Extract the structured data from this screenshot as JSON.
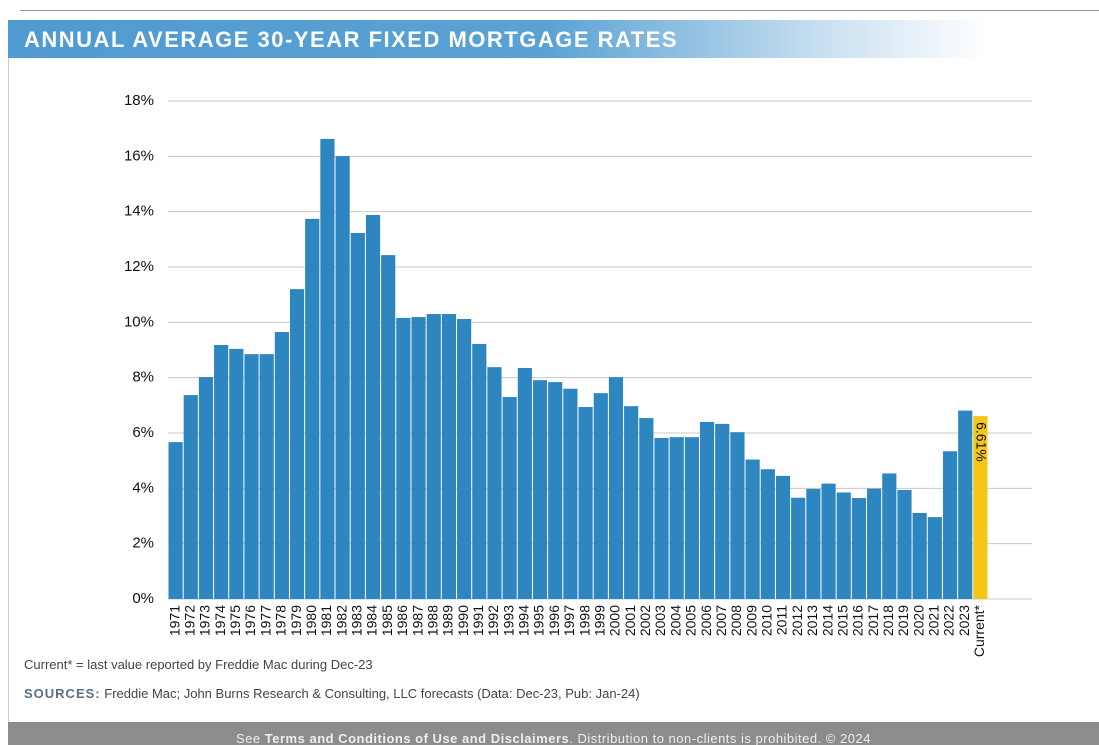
{
  "header": {
    "title": "ANNUAL AVERAGE 30-YEAR FIXED MORTGAGE RATES"
  },
  "chart_data": {
    "type": "bar",
    "categories": [
      "1971",
      "1972",
      "1973",
      "1974",
      "1975",
      "1976",
      "1977",
      "1978",
      "1979",
      "1980",
      "1981",
      "1982",
      "1983",
      "1984",
      "1985",
      "1986",
      "1987",
      "1988",
      "1989",
      "1990",
      "1991",
      "1992",
      "1993",
      "1994",
      "1995",
      "1996",
      "1997",
      "1998",
      "1999",
      "2000",
      "2001",
      "2002",
      "2003",
      "2004",
      "2005",
      "2006",
      "2007",
      "2008",
      "2009",
      "2010",
      "2011",
      "2012",
      "2013",
      "2014",
      "2015",
      "2016",
      "2017",
      "2018",
      "2019",
      "2020",
      "2021",
      "2022",
      "2023",
      "Current*"
    ],
    "values": [
      5.67,
      7.37,
      8.02,
      9.18,
      9.04,
      8.85,
      8.85,
      9.65,
      11.2,
      13.74,
      16.63,
      16.01,
      13.23,
      13.88,
      12.43,
      10.16,
      10.19,
      10.3,
      10.3,
      10.12,
      9.22,
      8.38,
      7.3,
      8.35,
      7.91,
      7.84,
      7.6,
      6.94,
      7.44,
      8.02,
      6.97,
      6.54,
      5.82,
      5.85,
      5.85,
      6.4,
      6.33,
      6.03,
      5.04,
      4.69,
      4.45,
      3.66,
      3.98,
      4.17,
      3.85,
      3.65,
      3.99,
      4.54,
      3.94,
      3.11,
      2.96,
      5.34,
      6.81,
      6.61
    ],
    "value_labels": [
      null,
      null,
      null,
      null,
      null,
      null,
      null,
      null,
      null,
      null,
      null,
      null,
      null,
      null,
      null,
      null,
      null,
      null,
      null,
      null,
      null,
      null,
      null,
      null,
      null,
      null,
      null,
      null,
      null,
      null,
      null,
      null,
      null,
      null,
      null,
      null,
      null,
      null,
      null,
      null,
      null,
      null,
      null,
      null,
      null,
      null,
      null,
      null,
      null,
      null,
      null,
      null,
      null,
      "6.61%"
    ],
    "color": "#2e86c1",
    "current_color": "#f5c518",
    "ylim": [
      0,
      18
    ],
    "yticks": [
      {
        "value": 0,
        "label": "0%"
      },
      {
        "value": 2,
        "label": "2%"
      },
      {
        "value": 4,
        "label": "4%"
      },
      {
        "value": 6,
        "label": "6%"
      },
      {
        "value": 8,
        "label": "8%"
      },
      {
        "value": 10,
        "label": "10%"
      },
      {
        "value": 12,
        "label": "12%"
      },
      {
        "value": 14,
        "label": "14%"
      },
      {
        "value": 16,
        "label": "16%"
      },
      {
        "value": 18,
        "label": "18%"
      }
    ],
    "grid": true
  },
  "notes": {
    "footnote": "Current* = last value reported by Freddie Mac during Dec-23",
    "sources_label": "SOURCES:",
    "sources_text": "Freddie Mac; John Burns Research & Consulting, LLC forecasts (Data: Dec-23, Pub: Jan-24)"
  },
  "footer": {
    "prefix": "See",
    "link": "Terms and Conditions of Use and Disclaimers",
    "suffix": ". Distribution to non-clients is prohibited. © 2024"
  }
}
